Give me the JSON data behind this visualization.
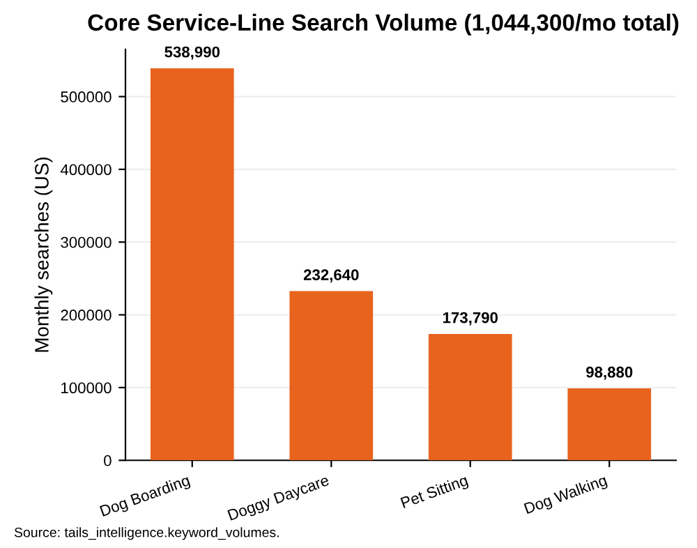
{
  "chart_data": {
    "type": "bar",
    "title": "Core Service-Line Search Volume (1,044,300/mo total)",
    "ylabel": "Monthly searches (US)",
    "categories": [
      "Dog Boarding",
      "Doggy Daycare",
      "Pet Sitting",
      "Dog Walking"
    ],
    "values": [
      538990,
      232640,
      173790,
      98880
    ],
    "color": "#e8631e",
    "value_labels": [
      "538,990",
      "232,640",
      "173,790",
      "98,880"
    ],
    "ylim": [
      0,
      565000
    ],
    "yticks": [
      0,
      100000,
      200000,
      300000,
      400000,
      500000
    ],
    "grid": "y",
    "annotations": [
      "Source: tails_intelligence.keyword_volumes."
    ]
  }
}
